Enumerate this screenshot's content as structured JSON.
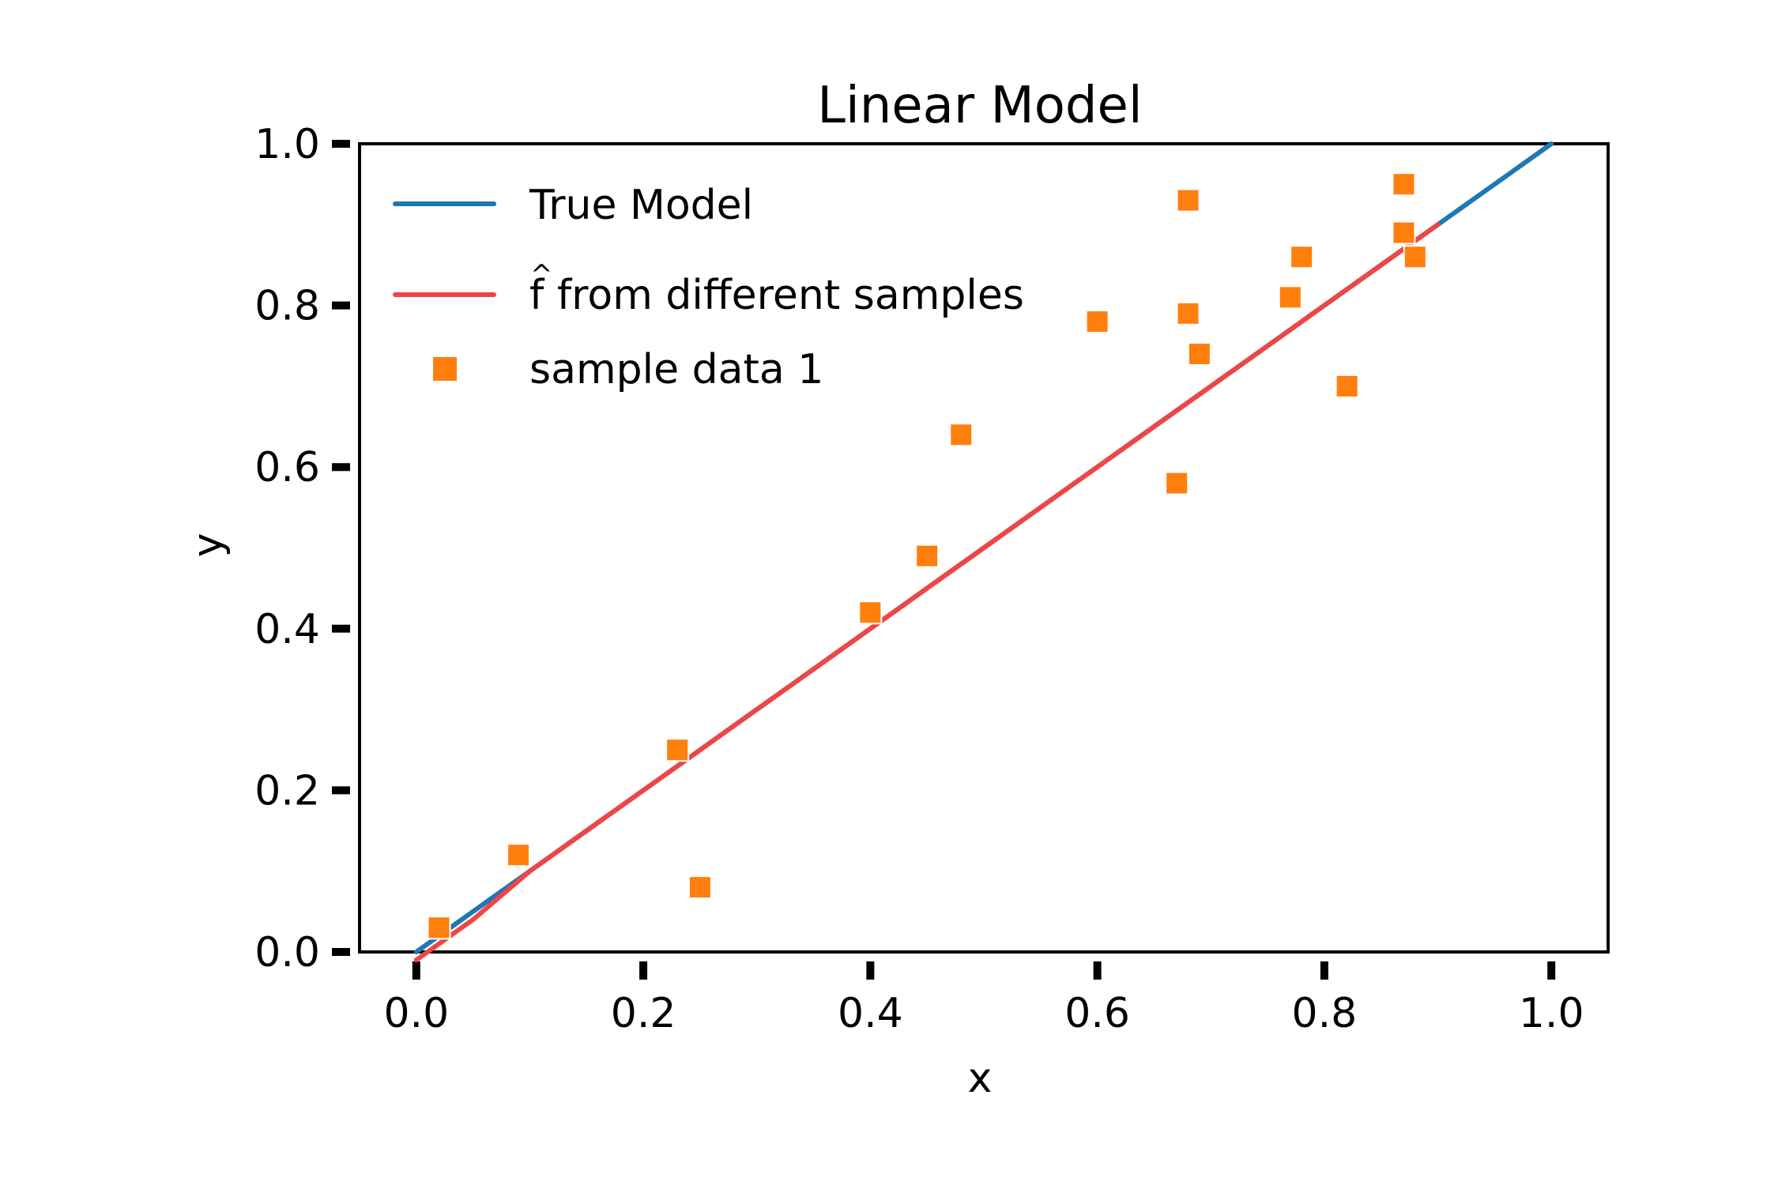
{
  "chart_data": {
    "type": "scatter",
    "title": "Linear Model",
    "xlabel": "x",
    "ylabel": "y",
    "xlim": [
      -0.05,
      1.05
    ],
    "ylim": [
      0.0,
      1.0
    ],
    "x_ticks": [
      0.0,
      0.2,
      0.4,
      0.6,
      0.8,
      1.0
    ],
    "y_ticks": [
      0.0,
      0.2,
      0.4,
      0.6,
      0.8,
      1.0
    ],
    "x_tick_labels": [
      "0.0",
      "0.2",
      "0.4",
      "0.6",
      "0.8",
      "1.0"
    ],
    "y_tick_labels": [
      "0.0",
      "0.2",
      "0.4",
      "0.6",
      "0.8",
      "1.0"
    ],
    "grid": false,
    "legend": {
      "position": "top-left",
      "entries": [
        {
          "label": "True Model",
          "kind": "line",
          "color": "#1f77b4"
        },
        {
          "label": "f from different samples",
          "kind": "line",
          "color": "#f04545"
        },
        {
          "label": "sample data 1",
          "kind": "marker",
          "color": "#ff7f0e"
        }
      ]
    },
    "series": [
      {
        "name": "True Model",
        "kind": "line",
        "color": "#1f77b4",
        "x": [
          0.0,
          0.05,
          0.1,
          0.15,
          0.2,
          0.25,
          0.3,
          0.35,
          0.4,
          0.45,
          0.5,
          0.55,
          0.6,
          0.65,
          0.7,
          0.75,
          0.8,
          0.85,
          0.9,
          0.95,
          1.0
        ],
        "y": [
          0.0,
          0.05,
          0.1,
          0.15,
          0.2,
          0.25,
          0.3,
          0.35,
          0.4,
          0.45,
          0.5,
          0.55,
          0.6,
          0.65,
          0.7,
          0.75,
          0.8,
          0.85,
          0.9,
          0.95,
          1.0
        ]
      },
      {
        "name": "f from different samples",
        "kind": "line",
        "color": "#f04545",
        "x": [
          0.0,
          0.05,
          0.1,
          0.15,
          0.2,
          0.25,
          0.3,
          0.35,
          0.4,
          0.45,
          0.5,
          0.55,
          0.6,
          0.65,
          0.7,
          0.75,
          0.8,
          0.85,
          0.9
        ],
        "y": [
          -0.01,
          0.04,
          0.1,
          0.15,
          0.2,
          0.25,
          0.3,
          0.35,
          0.4,
          0.45,
          0.5,
          0.55,
          0.6,
          0.65,
          0.7,
          0.75,
          0.8,
          0.85,
          0.9
        ]
      },
      {
        "name": "sample data 1",
        "kind": "scatter",
        "color": "#ff7f0e",
        "points": [
          [
            0.02,
            0.03
          ],
          [
            0.09,
            0.12
          ],
          [
            0.23,
            0.25
          ],
          [
            0.25,
            0.08
          ],
          [
            0.4,
            0.42
          ],
          [
            0.45,
            0.49
          ],
          [
            0.48,
            0.64
          ],
          [
            0.6,
            0.78
          ],
          [
            0.67,
            0.58
          ],
          [
            0.68,
            0.93
          ],
          [
            0.68,
            0.79
          ],
          [
            0.69,
            0.74
          ],
          [
            0.77,
            0.81
          ],
          [
            0.78,
            0.86
          ],
          [
            0.82,
            0.7
          ],
          [
            0.87,
            0.95
          ],
          [
            0.87,
            0.89
          ],
          [
            0.88,
            0.86
          ]
        ]
      }
    ]
  }
}
